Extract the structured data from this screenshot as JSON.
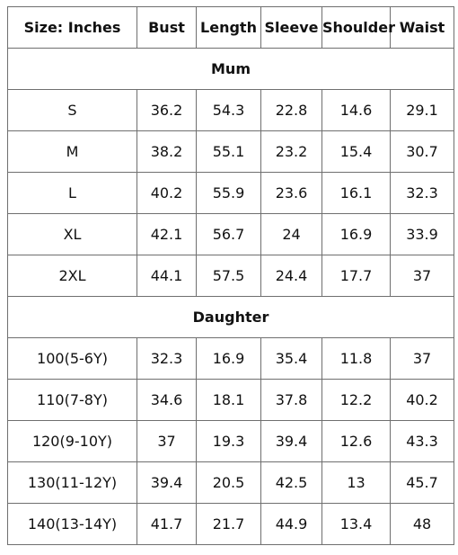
{
  "table": {
    "headers": [
      "Size: Inches",
      "Bust",
      "Length",
      "Sleeve",
      "Shoulder",
      "Waist"
    ],
    "sections": [
      {
        "title": "Mum",
        "rows": [
          [
            "S",
            "36.2",
            "54.3",
            "22.8",
            "14.6",
            "29.1"
          ],
          [
            "M",
            "38.2",
            "55.1",
            "23.2",
            "15.4",
            "30.7"
          ],
          [
            "L",
            "40.2",
            "55.9",
            "23.6",
            "16.1",
            "32.3"
          ],
          [
            "XL",
            "42.1",
            "56.7",
            "24",
            "16.9",
            "33.9"
          ],
          [
            "2XL",
            "44.1",
            "57.5",
            "24.4",
            "17.7",
            "37"
          ]
        ]
      },
      {
        "title": "Daughter",
        "rows": [
          [
            "100(5-6Y)",
            "32.3",
            "16.9",
            "35.4",
            "11.8",
            "37"
          ],
          [
            "110(7-8Y)",
            "34.6",
            "18.1",
            "37.8",
            "12.2",
            "40.2"
          ],
          [
            "120(9-10Y)",
            "37",
            "19.3",
            "39.4",
            "12.6",
            "43.3"
          ],
          [
            "130(11-12Y)",
            "39.4",
            "20.5",
            "42.5",
            "13",
            "45.7"
          ],
          [
            "140(13-14Y)",
            "41.7",
            "21.7",
            "44.9",
            "13.4",
            "48"
          ]
        ]
      }
    ]
  }
}
